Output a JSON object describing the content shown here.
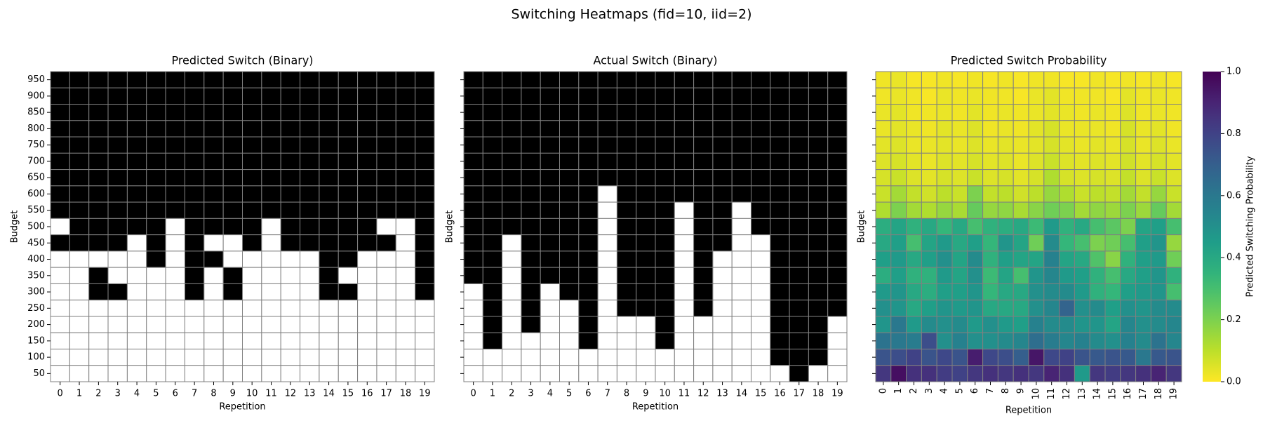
{
  "title": "Switching Heatmaps (fid=10, iid=2)",
  "chart_data": [
    {
      "type": "heatmap",
      "title": "Predicted Switch (Binary)",
      "xlabel": "Repetition",
      "ylabel": "Budget",
      "colormap": "binary",
      "x": [
        0,
        1,
        2,
        3,
        4,
        5,
        6,
        7,
        8,
        9,
        10,
        11,
        12,
        13,
        14,
        15,
        16,
        17,
        18,
        19
      ],
      "y": [
        950,
        900,
        850,
        800,
        750,
        700,
        650,
        600,
        550,
        500,
        450,
        400,
        350,
        300,
        250,
        200,
        150,
        100,
        50
      ],
      "values": [
        [
          1,
          1,
          1,
          1,
          1,
          1,
          1,
          1,
          1,
          1,
          1,
          1,
          1,
          1,
          1,
          1,
          1,
          1,
          1,
          1
        ],
        [
          1,
          1,
          1,
          1,
          1,
          1,
          1,
          1,
          1,
          1,
          1,
          1,
          1,
          1,
          1,
          1,
          1,
          1,
          1,
          1
        ],
        [
          1,
          1,
          1,
          1,
          1,
          1,
          1,
          1,
          1,
          1,
          1,
          1,
          1,
          1,
          1,
          1,
          1,
          1,
          1,
          1
        ],
        [
          1,
          1,
          1,
          1,
          1,
          1,
          1,
          1,
          1,
          1,
          1,
          1,
          1,
          1,
          1,
          1,
          1,
          1,
          1,
          1
        ],
        [
          1,
          1,
          1,
          1,
          1,
          1,
          1,
          1,
          1,
          1,
          1,
          1,
          1,
          1,
          1,
          1,
          1,
          1,
          1,
          1
        ],
        [
          1,
          1,
          1,
          1,
          1,
          1,
          1,
          1,
          1,
          1,
          1,
          1,
          1,
          1,
          1,
          1,
          1,
          1,
          1,
          1
        ],
        [
          1,
          1,
          1,
          1,
          1,
          1,
          1,
          1,
          1,
          1,
          1,
          1,
          1,
          1,
          1,
          1,
          1,
          1,
          1,
          1
        ],
        [
          1,
          1,
          1,
          1,
          1,
          1,
          1,
          1,
          1,
          1,
          1,
          1,
          1,
          1,
          1,
          1,
          1,
          1,
          1,
          1
        ],
        [
          1,
          1,
          1,
          1,
          1,
          1,
          1,
          1,
          1,
          1,
          1,
          1,
          1,
          1,
          1,
          1,
          1,
          1,
          1,
          1
        ],
        [
          0,
          1,
          1,
          1,
          1,
          1,
          0,
          1,
          1,
          1,
          1,
          0,
          1,
          1,
          1,
          1,
          1,
          0,
          0,
          1
        ],
        [
          1,
          1,
          1,
          1,
          0,
          1,
          0,
          1,
          0,
          0,
          1,
          0,
          1,
          1,
          1,
          1,
          1,
          1,
          0,
          1
        ],
        [
          0,
          0,
          0,
          0,
          0,
          1,
          0,
          1,
          1,
          0,
          0,
          0,
          0,
          0,
          1,
          1,
          0,
          0,
          0,
          1
        ],
        [
          0,
          0,
          1,
          0,
          0,
          0,
          0,
          1,
          0,
          1,
          0,
          0,
          0,
          0,
          1,
          0,
          0,
          0,
          0,
          1
        ],
        [
          0,
          0,
          1,
          1,
          0,
          0,
          0,
          1,
          0,
          1,
          0,
          0,
          0,
          0,
          1,
          1,
          0,
          0,
          0,
          1
        ],
        [
          0,
          0,
          0,
          0,
          0,
          0,
          0,
          0,
          0,
          0,
          0,
          0,
          0,
          0,
          0,
          0,
          0,
          0,
          0,
          0
        ],
        [
          0,
          0,
          0,
          0,
          0,
          0,
          0,
          0,
          0,
          0,
          0,
          0,
          0,
          0,
          0,
          0,
          0,
          0,
          0,
          0
        ],
        [
          0,
          0,
          0,
          0,
          0,
          0,
          0,
          0,
          0,
          0,
          0,
          0,
          0,
          0,
          0,
          0,
          0,
          0,
          0,
          0
        ],
        [
          0,
          0,
          0,
          0,
          0,
          0,
          0,
          0,
          0,
          0,
          0,
          0,
          0,
          0,
          0,
          0,
          0,
          0,
          0,
          0
        ],
        [
          0,
          0,
          0,
          0,
          0,
          0,
          0,
          0,
          0,
          0,
          0,
          0,
          0,
          0,
          0,
          0,
          0,
          0,
          0,
          0
        ]
      ]
    },
    {
      "type": "heatmap",
      "title": "Actual Switch (Binary)",
      "xlabel": "Repetition",
      "ylabel": "Budget",
      "colormap": "binary",
      "x": [
        0,
        1,
        2,
        3,
        4,
        5,
        6,
        7,
        8,
        9,
        10,
        11,
        12,
        13,
        14,
        15,
        16,
        17,
        18,
        19
      ],
      "values": [
        [
          1,
          1,
          1,
          1,
          1,
          1,
          1,
          1,
          1,
          1,
          1,
          1,
          1,
          1,
          1,
          1,
          1,
          1,
          1,
          1
        ],
        [
          1,
          1,
          1,
          1,
          1,
          1,
          1,
          1,
          1,
          1,
          1,
          1,
          1,
          1,
          1,
          1,
          1,
          1,
          1,
          1
        ],
        [
          1,
          1,
          1,
          1,
          1,
          1,
          1,
          1,
          1,
          1,
          1,
          1,
          1,
          1,
          1,
          1,
          1,
          1,
          1,
          1
        ],
        [
          1,
          1,
          1,
          1,
          1,
          1,
          1,
          1,
          1,
          1,
          1,
          1,
          1,
          1,
          1,
          1,
          1,
          1,
          1,
          1
        ],
        [
          1,
          1,
          1,
          1,
          1,
          1,
          1,
          1,
          1,
          1,
          1,
          1,
          1,
          1,
          1,
          1,
          1,
          1,
          1,
          1
        ],
        [
          1,
          1,
          1,
          1,
          1,
          1,
          1,
          1,
          1,
          1,
          1,
          1,
          1,
          1,
          1,
          1,
          1,
          1,
          1,
          1
        ],
        [
          1,
          1,
          1,
          1,
          1,
          1,
          1,
          1,
          1,
          1,
          1,
          1,
          1,
          1,
          1,
          1,
          1,
          1,
          1,
          1
        ],
        [
          1,
          1,
          1,
          1,
          1,
          1,
          1,
          0,
          1,
          1,
          1,
          1,
          1,
          1,
          1,
          1,
          1,
          1,
          1,
          1
        ],
        [
          1,
          1,
          1,
          1,
          1,
          1,
          1,
          0,
          1,
          1,
          1,
          0,
          1,
          1,
          0,
          1,
          1,
          1,
          1,
          1
        ],
        [
          1,
          1,
          1,
          1,
          1,
          1,
          1,
          0,
          1,
          1,
          1,
          0,
          1,
          1,
          0,
          1,
          1,
          1,
          1,
          1
        ],
        [
          1,
          1,
          0,
          1,
          1,
          1,
          1,
          0,
          1,
          1,
          1,
          0,
          1,
          1,
          0,
          0,
          1,
          1,
          1,
          1
        ],
        [
          1,
          1,
          0,
          1,
          1,
          1,
          1,
          0,
          1,
          1,
          1,
          0,
          1,
          0,
          0,
          0,
          1,
          1,
          1,
          1
        ],
        [
          1,
          1,
          0,
          1,
          1,
          1,
          1,
          0,
          1,
          1,
          1,
          0,
          1,
          0,
          0,
          0,
          1,
          1,
          1,
          1
        ],
        [
          0,
          1,
          0,
          1,
          0,
          1,
          1,
          0,
          1,
          1,
          1,
          0,
          1,
          0,
          0,
          0,
          1,
          1,
          1,
          1
        ],
        [
          0,
          1,
          0,
          1,
          0,
          0,
          1,
          0,
          1,
          1,
          1,
          0,
          1,
          0,
          0,
          0,
          1,
          1,
          1,
          1
        ],
        [
          0,
          1,
          0,
          1,
          0,
          0,
          1,
          0,
          0,
          0,
          1,
          0,
          0,
          0,
          0,
          0,
          1,
          1,
          1,
          0
        ],
        [
          0,
          1,
          0,
          0,
          0,
          0,
          1,
          0,
          0,
          0,
          1,
          0,
          0,
          0,
          0,
          0,
          1,
          1,
          1,
          0
        ],
        [
          0,
          0,
          0,
          0,
          0,
          0,
          0,
          0,
          0,
          0,
          0,
          0,
          0,
          0,
          0,
          0,
          1,
          1,
          1,
          0
        ],
        [
          0,
          0,
          0,
          0,
          0,
          0,
          0,
          0,
          0,
          0,
          0,
          0,
          0,
          0,
          0,
          0,
          0,
          1,
          0,
          0
        ]
      ]
    },
    {
      "type": "heatmap",
      "title": "Predicted Switch Probability",
      "xlabel": "Repetition",
      "ylabel": "Budget",
      "colormap": "viridis_r",
      "colorbar_label": "Predicted Switching Probability",
      "zlim": [
        0,
        1
      ],
      "zticks": [
        {
          "value": 0,
          "label": "0.0"
        },
        0.2,
        0.4,
        0.6,
        0.8,
        {
          "value": 1,
          "label": "1.0"
        }
      ],
      "x": [
        0,
        1,
        2,
        3,
        4,
        5,
        6,
        7,
        8,
        9,
        10,
        11,
        12,
        13,
        14,
        15,
        16,
        17,
        18,
        19
      ],
      "values": [
        [
          0.02,
          0.03,
          0.01,
          0.01,
          0.02,
          0.01,
          0.02,
          0.01,
          0.02,
          0.01,
          0.02,
          0.02,
          0.01,
          0.01,
          0.02,
          0.01,
          0.02,
          0.01,
          0.02,
          0.01
        ],
        [
          0.02,
          0.03,
          0.02,
          0.01,
          0.03,
          0.02,
          0.03,
          0.02,
          0.02,
          0.01,
          0.03,
          0.04,
          0.02,
          0.02,
          0.02,
          0.01,
          0.04,
          0.02,
          0.03,
          0.02
        ],
        [
          0.03,
          0.04,
          0.02,
          0.02,
          0.03,
          0.02,
          0.04,
          0.02,
          0.03,
          0.02,
          0.03,
          0.04,
          0.03,
          0.02,
          0.03,
          0.02,
          0.05,
          0.02,
          0.03,
          0.02
        ],
        [
          0.03,
          0.04,
          0.03,
          0.02,
          0.04,
          0.03,
          0.05,
          0.02,
          0.03,
          0.02,
          0.04,
          0.06,
          0.03,
          0.03,
          0.03,
          0.02,
          0.06,
          0.03,
          0.04,
          0.02
        ],
        [
          0.04,
          0.05,
          0.03,
          0.03,
          0.04,
          0.03,
          0.05,
          0.03,
          0.04,
          0.03,
          0.04,
          0.06,
          0.04,
          0.03,
          0.04,
          0.03,
          0.06,
          0.03,
          0.05,
          0.03
        ],
        [
          0.05,
          0.06,
          0.04,
          0.03,
          0.05,
          0.04,
          0.06,
          0.04,
          0.05,
          0.03,
          0.05,
          0.08,
          0.05,
          0.04,
          0.05,
          0.04,
          0.07,
          0.04,
          0.06,
          0.04
        ],
        [
          0.06,
          0.08,
          0.05,
          0.04,
          0.06,
          0.05,
          0.08,
          0.05,
          0.06,
          0.04,
          0.06,
          0.12,
          0.06,
          0.05,
          0.06,
          0.05,
          0.09,
          0.05,
          0.08,
          0.05
        ],
        [
          0.08,
          0.14,
          0.09,
          0.07,
          0.1,
          0.08,
          0.2,
          0.09,
          0.1,
          0.07,
          0.1,
          0.16,
          0.12,
          0.08,
          0.1,
          0.09,
          0.14,
          0.09,
          0.16,
          0.08
        ],
        [
          0.12,
          0.2,
          0.14,
          0.12,
          0.16,
          0.13,
          0.24,
          0.16,
          0.17,
          0.13,
          0.18,
          0.22,
          0.2,
          0.14,
          0.17,
          0.15,
          0.2,
          0.15,
          0.24,
          0.14
        ],
        [
          0.38,
          0.42,
          0.36,
          0.4,
          0.34,
          0.4,
          0.3,
          0.36,
          0.38,
          0.4,
          0.32,
          0.46,
          0.36,
          0.4,
          0.3,
          0.26,
          0.2,
          0.42,
          0.44,
          0.3
        ],
        [
          0.4,
          0.44,
          0.3,
          0.42,
          0.46,
          0.4,
          0.44,
          0.34,
          0.48,
          0.42,
          0.22,
          0.52,
          0.34,
          0.3,
          0.2,
          0.22,
          0.3,
          0.44,
          0.48,
          0.16
        ],
        [
          0.44,
          0.46,
          0.4,
          0.44,
          0.5,
          0.42,
          0.52,
          0.36,
          0.44,
          0.42,
          0.42,
          0.56,
          0.42,
          0.4,
          0.28,
          0.18,
          0.36,
          0.44,
          0.46,
          0.22
        ],
        [
          0.38,
          0.44,
          0.36,
          0.36,
          0.46,
          0.42,
          0.5,
          0.32,
          0.42,
          0.3,
          0.48,
          0.54,
          0.46,
          0.44,
          0.36,
          0.3,
          0.4,
          0.44,
          0.48,
          0.36
        ],
        [
          0.46,
          0.48,
          0.4,
          0.38,
          0.44,
          0.44,
          0.48,
          0.34,
          0.4,
          0.4,
          0.5,
          0.52,
          0.52,
          0.46,
          0.36,
          0.34,
          0.44,
          0.46,
          0.48,
          0.3
        ],
        [
          0.5,
          0.48,
          0.4,
          0.44,
          0.48,
          0.46,
          0.48,
          0.4,
          0.4,
          0.4,
          0.5,
          0.54,
          0.68,
          0.5,
          0.52,
          0.44,
          0.5,
          0.48,
          0.52,
          0.52
        ],
        [
          0.48,
          0.6,
          0.46,
          0.52,
          0.5,
          0.52,
          0.46,
          0.5,
          0.46,
          0.44,
          0.56,
          0.52,
          0.52,
          0.48,
          0.48,
          0.42,
          0.54,
          0.5,
          0.52,
          0.54
        ],
        [
          0.62,
          0.6,
          0.58,
          0.76,
          0.5,
          0.56,
          0.5,
          0.5,
          0.52,
          0.54,
          0.64,
          0.58,
          0.54,
          0.56,
          0.52,
          0.5,
          0.56,
          0.52,
          0.62,
          0.54
        ],
        [
          0.74,
          0.76,
          0.8,
          0.74,
          0.78,
          0.74,
          0.92,
          0.78,
          0.76,
          0.7,
          0.94,
          0.78,
          0.8,
          0.74,
          0.72,
          0.74,
          0.72,
          0.6,
          0.72,
          0.74
        ],
        [
          0.84,
          0.96,
          0.86,
          0.86,
          0.82,
          0.8,
          0.84,
          0.86,
          0.84,
          0.86,
          0.84,
          0.9,
          0.86,
          0.46,
          0.84,
          0.82,
          0.84,
          0.86,
          0.9,
          0.84
        ]
      ]
    }
  ]
}
